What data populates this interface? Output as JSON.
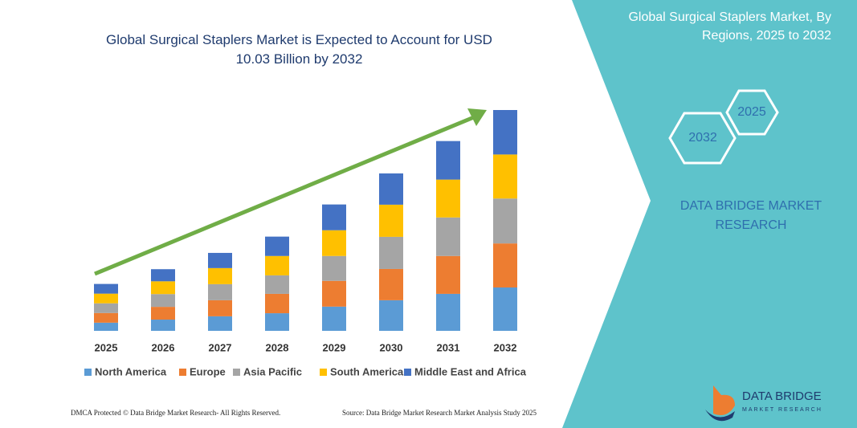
{
  "chart_data": {
    "type": "stacked-bar",
    "title": "Global Surgical Staplers Market is Expected to Account for USD 10.03 Billion by 2032",
    "categories": [
      "2025",
      "2026",
      "2027",
      "2028",
      "2029",
      "2030",
      "2031",
      "2032"
    ],
    "series": [
      {
        "name": "North America",
        "color": "#5b9bd5",
        "values": [
          0.37,
          0.51,
          0.66,
          0.8,
          1.1,
          1.39,
          1.68,
          1.97
        ]
      },
      {
        "name": "Europe",
        "color": "#ed7d31",
        "values": [
          0.44,
          0.58,
          0.73,
          0.88,
          1.17,
          1.42,
          1.72,
          2.0
        ]
      },
      {
        "name": "Asia Pacific",
        "color": "#a5a5a5",
        "values": [
          0.44,
          0.58,
          0.73,
          0.84,
          1.13,
          1.46,
          1.75,
          2.04
        ]
      },
      {
        "name": "South America",
        "color": "#ffc000",
        "values": [
          0.44,
          0.58,
          0.73,
          0.88,
          1.17,
          1.46,
          1.72,
          2.0
        ]
      },
      {
        "name": "Middle East and Africa",
        "color": "#4472c4",
        "values": [
          0.44,
          0.55,
          0.69,
          0.88,
          1.17,
          1.42,
          1.75,
          2.02
        ]
      }
    ]
  },
  "panel": {
    "title": "Global Surgical Staplers Market, By Regions, 2025 to 2032",
    "hex_start": "2025",
    "hex_end": "2032",
    "brand": "DATA BRIDGE MARKET RESEARCH"
  },
  "footer": {
    "left": "DMCA Protected © Data Bridge Market Research- All Rights Reserved.",
    "right": "Source: Data Bridge Market Research Market Analysis Study 2025"
  },
  "logo": {
    "name": "DATA BRIDGE",
    "tagline": "MARKET RESEARCH"
  }
}
